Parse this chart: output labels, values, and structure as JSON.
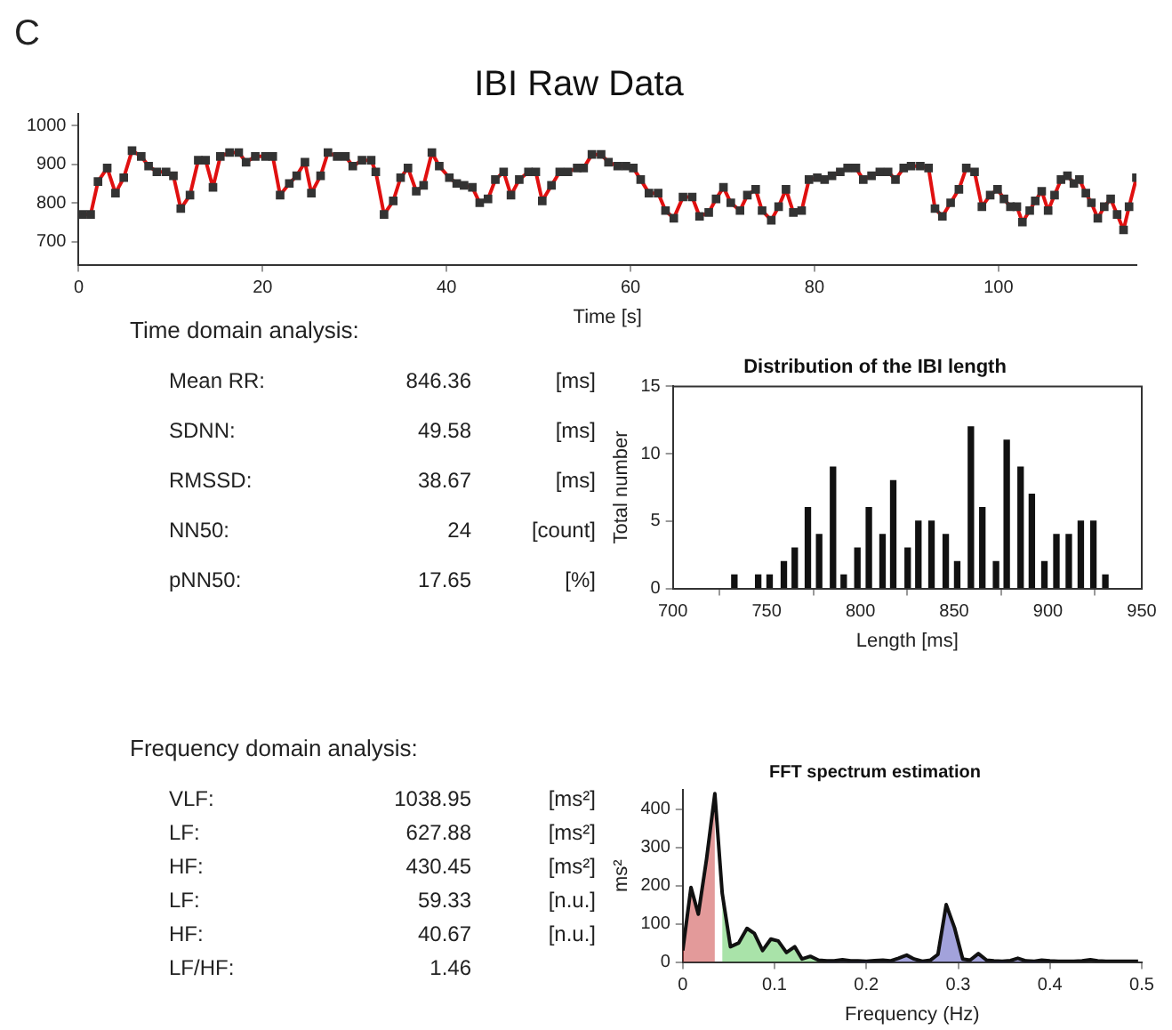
{
  "chart_data": [
    {
      "type": "line",
      "title": "IBI Raw Data",
      "xlabel": "Time [s]",
      "annotations": [
        "C"
      ],
      "color": "#e01010",
      "marker": "square",
      "line_style": "solid",
      "xlim": [
        0,
        115
      ],
      "xticks": [
        0,
        20,
        40,
        60,
        80,
        100
      ],
      "ylim": [
        640,
        1030
      ],
      "yticks": [
        700,
        800,
        900,
        1000
      ],
      "x": [
        0.4,
        1.3,
        2.1,
        3.1,
        4.0,
        4.9,
        5.8,
        6.8,
        7.6,
        8.5,
        9.5,
        10.3,
        11.1,
        12.1,
        13.0,
        13.8,
        14.6,
        15.4,
        16.4,
        17.4,
        18.2,
        19.2,
        20.3,
        21.1,
        21.9,
        22.9,
        23.7,
        24.6,
        25.3,
        26.3,
        27.1,
        28.1,
        29.0,
        29.8,
        30.8,
        31.8,
        32.3,
        33.2,
        34.2,
        35.0,
        35.8,
        36.7,
        37.5,
        38.4,
        39.2,
        40.3,
        41.1,
        41.9,
        42.8,
        43.6,
        44.5,
        45.3,
        46.2,
        47.0,
        47.9,
        48.9,
        49.7,
        50.4,
        51.4,
        52.3,
        53.2,
        54.2,
        54.9,
        55.8,
        56.8,
        57.6,
        58.6,
        59.5,
        60.3,
        61.1,
        62.0,
        63.0,
        63.8,
        64.7,
        65.7,
        66.7,
        67.5,
        68.5,
        69.3,
        70.1,
        70.9,
        71.9,
        72.7,
        73.6,
        74.3,
        75.3,
        76.1,
        76.9,
        77.7,
        78.6,
        79.4,
        80.3,
        81.1,
        81.9,
        82.8,
        83.6,
        84.5,
        85.3,
        86.2,
        87.1,
        88.0,
        88.8,
        89.7,
        90.5,
        91.5,
        92.4,
        93.1,
        93.9,
        94.8,
        95.7,
        96.5,
        97.4,
        98.2,
        99.1,
        99.9,
        100.6,
        101.3,
        102.0,
        102.6,
        103.4,
        104.0,
        104.7,
        105.4,
        106.1,
        106.8,
        107.5,
        108.2,
        108.8,
        109.5,
        110.1,
        110.8,
        111.5,
        112.2,
        112.9,
        113.6,
        114.2,
        115.0
      ],
      "values": [
        770,
        770,
        855,
        890,
        825,
        865,
        935,
        920,
        895,
        880,
        880,
        870,
        785,
        820,
        910,
        910,
        840,
        920,
        930,
        930,
        905,
        920,
        920,
        920,
        820,
        850,
        870,
        905,
        825,
        870,
        930,
        920,
        920,
        895,
        910,
        910,
        880,
        770,
        805,
        865,
        890,
        830,
        845,
        930,
        895,
        865,
        850,
        845,
        840,
        800,
        810,
        860,
        880,
        820,
        860,
        880,
        880,
        805,
        845,
        880,
        880,
        890,
        890,
        925,
        925,
        905,
        895,
        895,
        890,
        860,
        825,
        825,
        780,
        760,
        815,
        815,
        765,
        775,
        810,
        840,
        800,
        780,
        820,
        835,
        780,
        755,
        790,
        835,
        775,
        780,
        860,
        865,
        860,
        870,
        880,
        890,
        890,
        860,
        870,
        880,
        880,
        860,
        890,
        895,
        895,
        890,
        785,
        765,
        800,
        835,
        890,
        880,
        790,
        820,
        835,
        810,
        790,
        790,
        750,
        780,
        805,
        830,
        780,
        820,
        860,
        870,
        850,
        860,
        825,
        800,
        760,
        790,
        810,
        770,
        730,
        790,
        865
      ]
    },
    {
      "type": "other",
      "title": "Time domain analysis:",
      "cell_labels": [
        [
          "Mean RR:",
          "846.36",
          "[ms]"
        ],
        [
          "SDNN:",
          "49.58",
          "[ms]"
        ],
        [
          "RMSSD:",
          "38.67",
          "[ms]"
        ],
        [
          "NN50:",
          "24",
          "[count]"
        ],
        [
          "pNN50:",
          "17.65",
          "[%]"
        ]
      ]
    },
    {
      "type": "bar",
      "title": "Distribution of the IBI length",
      "xlabel": "Length [ms]",
      "ylabel": "Total number",
      "color": "#111111",
      "xlim": [
        700,
        950
      ],
      "xticks": [
        700,
        750,
        800,
        850,
        900,
        950
      ],
      "ylim": [
        0,
        15
      ],
      "yticks": [
        0,
        5,
        10,
        15
      ],
      "x": [
        732.8,
        745.5,
        751.6,
        759.2,
        765.0,
        772.0,
        778.0,
        785.4,
        791.1,
        798.4,
        804.5,
        811.8,
        817.5,
        825.2,
        830.9,
        837.9,
        845.5,
        851.6,
        858.9,
        865.0,
        872.3,
        878.0,
        885.4,
        891.4,
        898.1,
        904.5,
        911.1,
        917.5,
        924.2,
        930.6
      ],
      "values": [
        1,
        1,
        1,
        2,
        3,
        6,
        4,
        9,
        1,
        3,
        6,
        4,
        8,
        3,
        5,
        5,
        4,
        2,
        12,
        6,
        2,
        11,
        9,
        7,
        2,
        4,
        4,
        5,
        5,
        1
      ]
    },
    {
      "type": "other",
      "title": "Frequency domain analysis:",
      "cell_labels": [
        [
          "VLF:",
          "1038.95",
          "[ms²]"
        ],
        [
          "LF:",
          "627.88",
          "[ms²]"
        ],
        [
          "HF:",
          "430.45",
          "[ms²]"
        ],
        [
          "LF:",
          "59.33",
          "[n.u.]"
        ],
        [
          "HF:",
          "40.67",
          "[n.u.]"
        ],
        [
          "LF/HF:",
          "1.46",
          null
        ]
      ]
    },
    {
      "type": "line",
      "title": "FFT spectrum estimation",
      "xlabel": "Frequency (Hz)",
      "ylabel": "ms²",
      "marker": "none",
      "xlim": [
        0,
        0.5
      ],
      "xticks": [
        0,
        0.1,
        0.2,
        0.3,
        0.4,
        0.5
      ],
      "ylim": [
        0,
        450
      ],
      "yticks": [
        0,
        100,
        200,
        300,
        400
      ],
      "x": [
        0,
        0.009,
        0.017,
        0.026,
        0.035,
        0.043,
        0.052,
        0.061,
        0.07,
        0.078,
        0.087,
        0.096,
        0.104,
        0.113,
        0.122,
        0.13,
        0.139,
        0.148,
        0.157,
        0.165,
        0.174,
        0.183,
        0.191,
        0.2,
        0.209,
        0.218,
        0.226,
        0.235,
        0.244,
        0.252,
        0.261,
        0.27,
        0.278,
        0.287,
        0.296,
        0.305,
        0.313,
        0.322,
        0.331,
        0.339,
        0.348,
        0.357,
        0.365,
        0.374,
        0.383,
        0.391,
        0.4,
        0.409,
        0.417,
        0.426,
        0.435,
        0.444,
        0.452,
        0.461,
        0.47,
        0.478,
        0.487,
        0.496
      ],
      "series": [
        {
          "color": "#111111",
          "values": [
            30,
            195,
            125,
            270,
            440,
            180,
            40,
            50,
            88,
            75,
            30,
            60,
            55,
            25,
            40,
            8,
            15,
            5,
            3,
            3,
            6,
            3,
            3,
            2,
            4,
            5,
            3,
            10,
            18,
            8,
            2,
            5,
            20,
            150,
            90,
            8,
            5,
            22,
            5,
            3,
            2,
            4,
            10,
            3,
            2,
            5,
            3,
            2,
            2,
            2,
            3,
            6,
            3,
            2,
            2,
            2,
            2,
            2
          ]
        },
        {
          "type": "area",
          "color": "#c02020",
          "x": [
            0,
            0.009,
            0.017,
            0.026,
            0.035
          ],
          "values": [
            30,
            195,
            125,
            270,
            440
          ]
        },
        {
          "type": "area",
          "color": "#40c040",
          "x": [
            0.043,
            0.052,
            0.061,
            0.07,
            0.078,
            0.087,
            0.096,
            0.104,
            0.113,
            0.122,
            0.13,
            0.139,
            0.148
          ],
          "values": [
            180,
            40,
            50,
            88,
            75,
            30,
            60,
            55,
            25,
            40,
            8,
            15,
            5
          ]
        },
        {
          "type": "area",
          "color": "#3030b0",
          "x": [
            0.157,
            0.165,
            0.174,
            0.183,
            0.191,
            0.2,
            0.209,
            0.218,
            0.226,
            0.235,
            0.244,
            0.252,
            0.261,
            0.27,
            0.278,
            0.287,
            0.296,
            0.305,
            0.313,
            0.322,
            0.331,
            0.339,
            0.348,
            0.357,
            0.365,
            0.374,
            0.383,
            0.391,
            0.4
          ],
          "values": [
            3,
            3,
            6,
            3,
            3,
            2,
            4,
            5,
            3,
            10,
            18,
            8,
            2,
            5,
            20,
            150,
            90,
            8,
            5,
            22,
            5,
            3,
            2,
            4,
            10,
            3,
            2,
            5,
            3
          ]
        }
      ]
    }
  ]
}
